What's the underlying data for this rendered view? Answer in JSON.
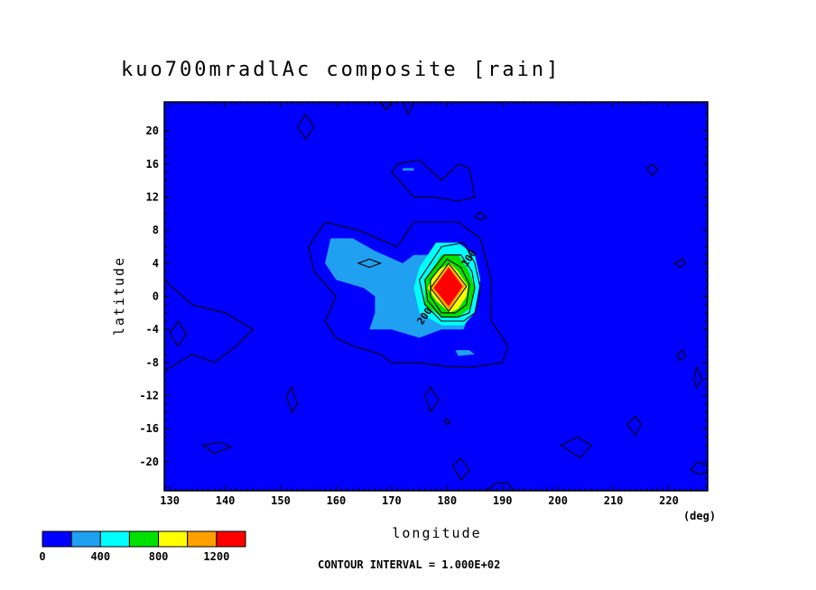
{
  "chart_data": {
    "type": "heatmap",
    "title": "kuo700mradlAc composite [rain]",
    "xlabel": "longitude",
    "xunit": "(deg)",
    "ylabel": "latitude",
    "xlim": [
      129,
      227
    ],
    "ylim": [
      -23.5,
      23.5
    ],
    "xticks": [
      130,
      140,
      150,
      160,
      170,
      180,
      190,
      200,
      210,
      220
    ],
    "yticks": [
      20,
      16,
      12,
      8,
      4,
      0,
      -4,
      -8,
      -12,
      -16,
      -20
    ],
    "contour_interval_label": "CONTOUR INTERVAL = 1.000E+02",
    "contour_labels": [
      {
        "text": "200",
        "x": 175.5,
        "y": -3.5
      },
      {
        "text": "100",
        "x": 183.5,
        "y": 3.5
      }
    ],
    "levels": [
      0,
      200,
      400,
      600,
      800,
      1000,
      1200
    ],
    "colorbar": {
      "colors": [
        "#0000ff",
        "#20a0f0",
        "#00ffff",
        "#00e000",
        "#ffff00",
        "#ffa000",
        "#ff0000"
      ],
      "tick_labels": [
        {
          "level": 0,
          "text": "0"
        },
        {
          "level": 400,
          "text": "400"
        },
        {
          "level": 800,
          "text": "800"
        },
        {
          "level": 1200,
          "text": "1200"
        }
      ]
    },
    "filled_regions": [
      {
        "level": "200-400",
        "color": "#20a0f0",
        "points": [
          [
            159,
            7
          ],
          [
            163,
            7
          ],
          [
            167,
            5.5
          ],
          [
            172,
            4
          ],
          [
            174,
            5
          ],
          [
            177,
            5
          ],
          [
            179,
            2
          ],
          [
            182,
            0
          ],
          [
            184,
            -2
          ],
          [
            183,
            -4
          ],
          [
            179,
            -4
          ],
          [
            175,
            -5
          ],
          [
            170,
            -4
          ],
          [
            166,
            -4
          ],
          [
            167,
            -2
          ],
          [
            167,
            0
          ],
          [
            165,
            1
          ],
          [
            160,
            2
          ],
          [
            158,
            4
          ]
        ]
      },
      {
        "level": "400-600",
        "color": "#00ffff",
        "points": [
          [
            178,
            6.5
          ],
          [
            182,
            6.5
          ],
          [
            185,
            5
          ],
          [
            186,
            2
          ],
          [
            185,
            -2
          ],
          [
            183,
            -3.5
          ],
          [
            179,
            -3.5
          ],
          [
            175,
            -2
          ],
          [
            174,
            1
          ],
          [
            175,
            3.5
          ]
        ]
      },
      {
        "level": "600-800",
        "color": "#00e000",
        "points": [
          [
            179,
            5
          ],
          [
            182,
            5
          ],
          [
            184,
            3
          ],
          [
            185,
            1
          ],
          [
            184,
            -1.5
          ],
          [
            182,
            -2.5
          ],
          [
            179,
            -2.5
          ],
          [
            176,
            -1
          ],
          [
            176,
            2
          ]
        ]
      },
      {
        "level": "800-1000",
        "color": "#ffff00",
        "points": [
          [
            180.5,
            4
          ],
          [
            182,
            3
          ],
          [
            183.8,
            1.2
          ],
          [
            183.5,
            0
          ],
          [
            182,
            -1.5
          ],
          [
            180.5,
            -2
          ],
          [
            178,
            -0.5
          ],
          [
            176.5,
            1
          ],
          [
            178,
            3
          ]
        ]
      },
      {
        "level": "1000-1200",
        "color": "#ffa000",
        "points": [
          [
            180.3,
            3.8
          ],
          [
            183.2,
            1.2
          ],
          [
            180.3,
            -1.6
          ],
          [
            177.2,
            1
          ]
        ]
      },
      {
        "level": ">1200",
        "color": "#ff0000",
        "points": [
          [
            180.3,
            3.5
          ],
          [
            182.8,
            1.2
          ],
          [
            180.3,
            -1.2
          ],
          [
            177.6,
            1
          ]
        ]
      },
      {
        "level": "200-400",
        "color": "#20a0f0",
        "points": [
          [
            181.5,
            -6.5
          ],
          [
            184,
            -6.5
          ],
          [
            185,
            -7
          ],
          [
            182,
            -7.2
          ]
        ]
      },
      {
        "level": "200-400",
        "color": "#20a0f0",
        "points": [
          [
            172,
            15.5
          ],
          [
            174,
            15.5
          ],
          [
            174,
            15.2
          ],
          [
            172,
            15.2
          ]
        ]
      }
    ],
    "contours": [
      {
        "level": 100,
        "closed": true,
        "points": [
          [
            158,
            9
          ],
          [
            164,
            8
          ],
          [
            171,
            6
          ],
          [
            174,
            9
          ],
          [
            182,
            9
          ],
          [
            186,
            7
          ],
          [
            188,
            2
          ],
          [
            188,
            -3
          ],
          [
            191,
            -6
          ],
          [
            190,
            -8
          ],
          [
            185,
            -8.5
          ],
          [
            180,
            -8.5
          ],
          [
            175,
            -8
          ],
          [
            170,
            -8
          ],
          [
            168,
            -7
          ],
          [
            163,
            -6
          ],
          [
            160,
            -5
          ],
          [
            158,
            -3
          ],
          [
            160,
            0
          ],
          [
            156,
            3
          ],
          [
            155,
            6
          ]
        ]
      },
      {
        "level": 100,
        "closed": false,
        "points": [
          [
            129,
            2
          ],
          [
            134,
            -1
          ],
          [
            140,
            -2
          ],
          [
            145,
            -4
          ],
          [
            142,
            -6
          ],
          [
            138,
            -8
          ],
          [
            134,
            -7
          ],
          [
            129,
            -9
          ]
        ]
      },
      {
        "level": 100,
        "closed": true,
        "points": [
          [
            153,
            20.5
          ],
          [
            154.5,
            22
          ],
          [
            156,
            20.5
          ],
          [
            154.5,
            19
          ]
        ]
      },
      {
        "level": 100,
        "closed": true,
        "points": [
          [
            171,
            16
          ],
          [
            175,
            16.5
          ],
          [
            179,
            14
          ],
          [
            182,
            16
          ],
          [
            184,
            15.5
          ],
          [
            185,
            12
          ],
          [
            182,
            11.5
          ],
          [
            178,
            12
          ],
          [
            174,
            12
          ],
          [
            170,
            15
          ]
        ]
      },
      {
        "level": 100,
        "closed": true,
        "points": [
          [
            186,
            10.2
          ],
          [
            187,
            9.6
          ],
          [
            186,
            9.2
          ],
          [
            185,
            9.6
          ]
        ]
      },
      {
        "level": 100,
        "closed": true,
        "points": [
          [
            216,
            15.5
          ],
          [
            217,
            16
          ],
          [
            218,
            15.4
          ],
          [
            217,
            14.6
          ]
        ]
      },
      {
        "level": 100,
        "closed": true,
        "points": [
          [
            221,
            4
          ],
          [
            222.5,
            4.5
          ],
          [
            223,
            4
          ],
          [
            222,
            3.5
          ]
        ]
      },
      {
        "level": 100,
        "closed": true,
        "points": [
          [
            221.5,
            -7
          ],
          [
            222.5,
            -6.5
          ],
          [
            223,
            -7.2
          ],
          [
            222,
            -7.8
          ]
        ]
      },
      {
        "level": 100,
        "closed": true,
        "points": [
          [
            225,
            -8.5
          ],
          [
            226,
            -10
          ],
          [
            225,
            -11
          ],
          [
            224.5,
            -10
          ]
        ]
      },
      {
        "level": 100,
        "closed": true,
        "points": [
          [
            151,
            -12
          ],
          [
            152,
            -11
          ],
          [
            153,
            -13
          ],
          [
            152,
            -14
          ]
        ]
      },
      {
        "level": 100,
        "closed": true,
        "points": [
          [
            176,
            -12
          ],
          [
            177,
            -11
          ],
          [
            178.5,
            -12.5
          ],
          [
            177,
            -14
          ]
        ]
      },
      {
        "level": 100,
        "closed": true,
        "points": [
          [
            136,
            -18
          ],
          [
            139,
            -17.6
          ],
          [
            141,
            -18.2
          ],
          [
            138,
            -19
          ]
        ]
      },
      {
        "level": 100,
        "closed": true,
        "points": [
          [
            200.5,
            -18
          ],
          [
            203.5,
            -17
          ],
          [
            206,
            -18
          ],
          [
            204,
            -19.5
          ]
        ]
      },
      {
        "level": 100,
        "closed": true,
        "points": [
          [
            212.5,
            -15.5
          ],
          [
            214,
            -14.5
          ],
          [
            215,
            -15.5
          ],
          [
            214,
            -16.8
          ]
        ]
      },
      {
        "level": 100,
        "closed": true,
        "points": [
          [
            181,
            -20.5
          ],
          [
            182.5,
            -19.6
          ],
          [
            184,
            -21
          ],
          [
            182.5,
            -22.2
          ]
        ]
      },
      {
        "level": 100,
        "closed": false,
        "points": [
          [
            227,
            -20.5
          ],
          [
            225,
            -20
          ],
          [
            224,
            -21
          ],
          [
            225.5,
            -21.5
          ],
          [
            227,
            -21.3
          ]
        ]
      },
      {
        "level": 100,
        "closed": false,
        "points": [
          [
            187,
            -23.5
          ],
          [
            189,
            -22.5
          ],
          [
            191,
            -22.6
          ],
          [
            192,
            -23.5
          ]
        ]
      },
      {
        "level": 100,
        "closed": false,
        "points": [
          [
            168,
            23.5
          ],
          [
            169,
            22.5
          ],
          [
            170,
            23.5
          ]
        ]
      },
      {
        "level": 100,
        "closed": false,
        "points": [
          [
            172,
            23.5
          ],
          [
            173,
            22
          ],
          [
            174,
            23.5
          ]
        ]
      },
      {
        "level": 200,
        "closed": true,
        "points": [
          [
            130,
            -4.5
          ],
          [
            131.5,
            -3
          ],
          [
            133,
            -4.5
          ],
          [
            131.5,
            -6
          ]
        ]
      },
      {
        "level": 200,
        "closed": true,
        "points": [
          [
            164,
            4
          ],
          [
            166,
            4.5
          ],
          [
            168,
            4
          ],
          [
            166,
            3.5
          ]
        ]
      },
      {
        "level": 200,
        "closed": true,
        "points": [
          [
            179.5,
            -15
          ],
          [
            180,
            -14.8
          ],
          [
            180.5,
            -15.2
          ],
          [
            180,
            -15.5
          ]
        ]
      },
      {
        "level": 300,
        "closed": true,
        "points": [
          [
            179,
            6
          ],
          [
            183,
            6.5
          ],
          [
            185,
            4
          ],
          [
            186,
            1
          ],
          [
            185,
            -2
          ],
          [
            183,
            -3
          ],
          [
            179,
            -3
          ],
          [
            176,
            -1
          ],
          [
            175,
            2
          ]
        ]
      },
      {
        "level": 500,
        "closed": true,
        "points": [
          [
            179.5,
            5
          ],
          [
            182.5,
            5
          ],
          [
            184.5,
            3
          ],
          [
            185,
            1
          ],
          [
            184,
            -2
          ],
          [
            182,
            -2.5
          ],
          [
            179,
            -2.5
          ],
          [
            176.5,
            -0.5
          ],
          [
            176,
            2
          ]
        ]
      },
      {
        "level": 700,
        "closed": true,
        "points": [
          [
            180,
            4.5
          ],
          [
            182.5,
            3.5
          ],
          [
            184,
            1.5
          ],
          [
            183.5,
            -1
          ],
          [
            181.5,
            -2
          ],
          [
            179,
            -2
          ],
          [
            177,
            0
          ],
          [
            177,
            2
          ]
        ]
      },
      {
        "level": 900,
        "closed": true,
        "points": [
          [
            180.3,
            4
          ],
          [
            183.5,
            1.2
          ],
          [
            180.3,
            -1.8
          ],
          [
            177,
            1
          ]
        ]
      }
    ]
  }
}
